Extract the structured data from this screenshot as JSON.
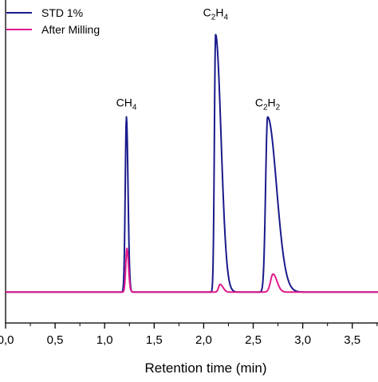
{
  "chart_data": {
    "type": "line",
    "title": "",
    "xlabel": "Retention time (min)",
    "ylabel": "",
    "xlim": [
      0.0,
      3.8
    ],
    "ylim": [
      -0.12,
      1.14
    ],
    "xticks": [
      {
        "value": 0.0,
        "label": "0,0"
      },
      {
        "value": 0.5,
        "label": "0,5"
      },
      {
        "value": 1.0,
        "label": "1,0"
      },
      {
        "value": 1.5,
        "label": "1,5"
      },
      {
        "value": 2.0,
        "label": "2,0"
      },
      {
        "value": 2.5,
        "label": "2,5"
      },
      {
        "value": 3.0,
        "label": "3,0"
      },
      {
        "value": 3.5,
        "label": "3,5"
      }
    ],
    "grid": false,
    "legend_position": "top-left",
    "series": [
      {
        "name": "STD 1%",
        "color": "#1a1a8c",
        "baseline": 0.0,
        "peaks": [
          {
            "x": 1.22,
            "height": 0.68,
            "width_left": 0.012,
            "width_right": 0.016
          },
          {
            "x": 2.12,
            "height": 1.0,
            "width_left": 0.012,
            "width_right": 0.055
          },
          {
            "x": 2.645,
            "height": 0.68,
            "width_left": 0.02,
            "width_right": 0.09
          }
        ]
      },
      {
        "name": "After Milling",
        "color": "#e0198c",
        "baseline": 0.0,
        "peaks": [
          {
            "x": 1.225,
            "height": 0.17,
            "width_left": 0.012,
            "width_right": 0.016
          },
          {
            "x": 2.165,
            "height": 0.03,
            "width_left": 0.015,
            "width_right": 0.03
          },
          {
            "x": 2.7,
            "height": 0.07,
            "width_left": 0.025,
            "width_right": 0.04
          }
        ]
      }
    ],
    "annotations": [
      {
        "main": "CH",
        "sub": "4",
        "x": 1.22,
        "y": 0.72
      },
      {
        "main": "C",
        "sub": "2",
        "main2": "H",
        "sub2": "4",
        "x": 2.12,
        "y": 1.07
      },
      {
        "main": "C",
        "sub": "2",
        "main2": "H",
        "sub2": "2",
        "x": 2.645,
        "y": 0.72
      }
    ]
  }
}
